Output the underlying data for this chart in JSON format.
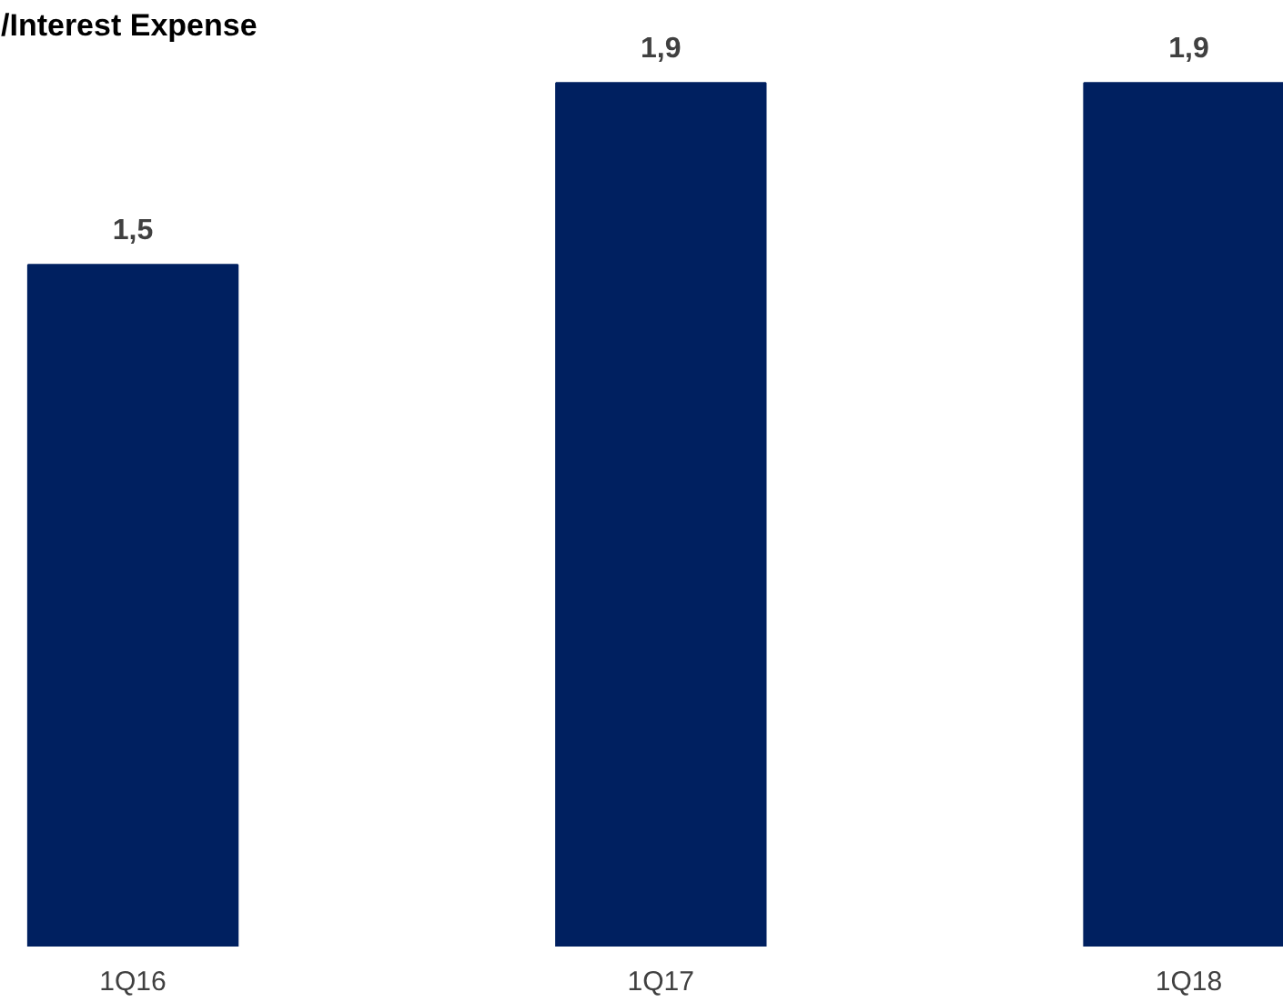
{
  "chart_data": {
    "type": "bar",
    "title": "/Interest Expense",
    "categories": [
      "1Q16",
      "1Q17",
      "1Q18"
    ],
    "values": [
      1.5,
      1.9,
      1.9
    ],
    "color": "#002060",
    "value_labels": [
      "1,5",
      "1,9",
      "1,9"
    ],
    "grid": false
  }
}
